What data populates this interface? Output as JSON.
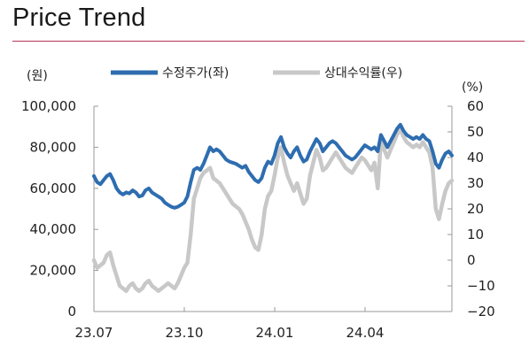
{
  "title": "Price Trend",
  "colors": {
    "accent_rule": "#b5365a",
    "price": "#2e6db0",
    "relative": "#c8c8c8"
  },
  "chart_data": {
    "type": "line",
    "title": "Price Trend",
    "left_unit": "(원)",
    "right_unit": "(%)",
    "grid": false,
    "legend_position": "top",
    "x_ticks": [
      "23.07",
      "23.10",
      "24.01",
      "24.04"
    ],
    "y_left": {
      "ticks": [
        "0",
        "20,000",
        "40,000",
        "60,000",
        "80,000",
        "100,000"
      ],
      "range": [
        0,
        100000
      ]
    },
    "y_right": {
      "ticks": [
        "60",
        "50",
        "40",
        "30",
        "20",
        "10",
        "0",
        "−10",
        "−20"
      ],
      "range": [
        -20,
        60
      ]
    },
    "series": [
      {
        "name": "수정주가(좌)",
        "axis": "left",
        "color": "#2e6db0",
        "values": [
          66000,
          63000,
          62000,
          64000,
          66000,
          67000,
          64000,
          60000,
          58000,
          57000,
          58000,
          57500,
          59000,
          58000,
          56000,
          56500,
          59000,
          60000,
          58000,
          57000,
          56000,
          55000,
          53000,
          52000,
          51000,
          50500,
          51000,
          52000,
          53000,
          56000,
          63000,
          69000,
          70000,
          69000,
          72000,
          76000,
          80000,
          78000,
          79000,
          78000,
          76000,
          74000,
          73000,
          72500,
          72000,
          71000,
          70000,
          71000,
          68000,
          66000,
          64000,
          63000,
          65000,
          70000,
          73000,
          72000,
          76000,
          82000,
          85000,
          80000,
          77000,
          75000,
          78000,
          80000,
          76000,
          73000,
          74000,
          78000,
          81000,
          84000,
          82000,
          78000,
          80000,
          82000,
          83000,
          82000,
          80000,
          78000,
          76000,
          75000,
          74000,
          75000,
          77000,
          79000,
          81000,
          80000,
          79000,
          80000,
          78000,
          86000,
          83000,
          80000,
          83000,
          86000,
          89000,
          91000,
          88000,
          86000,
          85000,
          84000,
          85000,
          84000,
          86000,
          84000,
          83000,
          78000,
          72000,
          70000,
          74000,
          77000,
          78000,
          76000
        ]
      },
      {
        "name": "상대수익률(우)",
        "axis": "right",
        "color": "#c8c8c8",
        "values": [
          0,
          -3,
          -2,
          -1,
          2,
          3,
          -2,
          -6,
          -10,
          -11,
          -12,
          -10,
          -9,
          -11,
          -12,
          -11,
          -9,
          -8,
          -10,
          -11,
          -12,
          -11,
          -10,
          -9,
          -10,
          -11,
          -9,
          -6,
          -3,
          -1,
          10,
          24,
          28,
          32,
          34,
          35,
          36,
          32,
          31,
          30,
          28,
          26,
          24,
          22,
          21,
          20,
          18,
          15,
          12,
          8,
          5,
          4,
          10,
          20,
          25,
          27,
          33,
          40,
          44,
          38,
          33,
          30,
          27,
          30,
          26,
          22,
          24,
          33,
          38,
          43,
          40,
          35,
          36,
          38,
          40,
          42,
          40,
          38,
          36,
          35,
          34,
          36,
          38,
          40,
          39,
          37,
          35,
          38,
          28,
          47,
          43,
          40,
          43,
          46,
          49,
          51,
          48,
          46,
          45,
          44,
          45,
          44,
          46,
          44,
          42,
          36,
          20,
          16,
          22,
          27,
          30,
          31
        ]
      }
    ]
  }
}
